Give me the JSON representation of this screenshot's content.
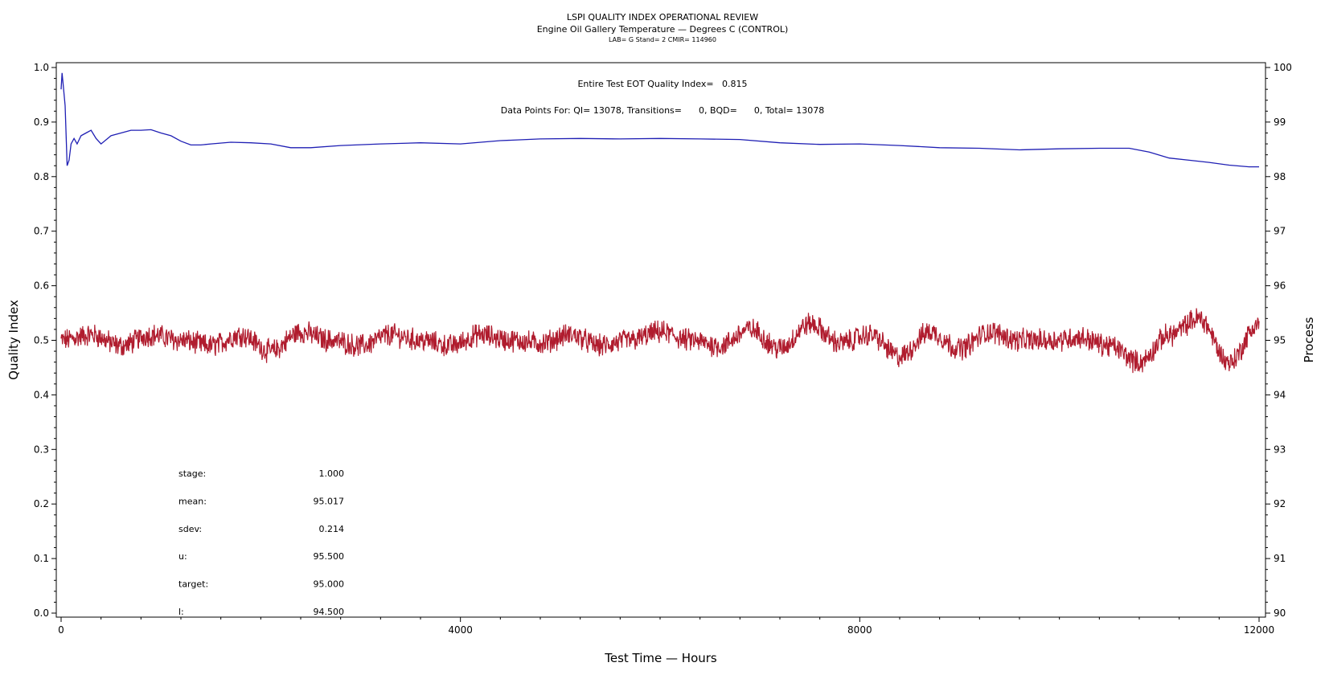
{
  "chart_data": {
    "type": "line",
    "title": "LSPI QUALITY INDEX OPERATIONAL REVIEW",
    "subtitle": "Engine Oil Gallery Temperature — Degrees C (CONTROL)",
    "subtitle2": "LAB= G Stand= 2 CMIR= 114960",
    "xlabel": "Test Time — Hours",
    "ylabel_left": "Quality Index",
    "ylabel_right": "Process",
    "xlim": [
      0,
      12000
    ],
    "ylim_left": [
      0.0,
      1.0
    ],
    "ylim_right": [
      90,
      100
    ],
    "x_ticks": [
      "0",
      "4000",
      "8000",
      "12000"
    ],
    "y_ticks_left": [
      "0.0",
      "0.1",
      "0.2",
      "0.3",
      "0.4",
      "0.5",
      "0.6",
      "0.7",
      "0.8",
      "0.9",
      "1.0"
    ],
    "y_ticks_right": [
      "90",
      "91",
      "92",
      "93",
      "94",
      "95",
      "96",
      "97",
      "98",
      "99",
      "100"
    ],
    "grid": false,
    "annotations": {
      "quality_index": "Entire Test EOT Quality Index=   0.815",
      "data_points": "Data Points For: QI= 13078, Transitions=      0, BQD=      0, Total= 13078"
    },
    "stats": [
      {
        "label": "stage:",
        "value": "1.000"
      },
      {
        "label": "mean:",
        "value": "95.017"
      },
      {
        "label": "sdev:",
        "value": "0.214"
      },
      {
        "label": "u:",
        "value": "95.500"
      },
      {
        "label": "target:",
        "value": "95.000"
      },
      {
        "label": "l:",
        "value": "94.500"
      }
    ],
    "series": [
      {
        "axis": "left",
        "color": "#1f1fb4",
        "x": [
          0,
          10,
          20,
          40,
          60,
          80,
          100,
          130,
          160,
          200,
          250,
          300,
          350,
          400,
          500,
          600,
          700,
          800,
          900,
          1000,
          1100,
          1200,
          1300,
          1400,
          1500,
          1700,
          1900,
          2100,
          2300,
          2500,
          2800,
          3200,
          3600,
          4000,
          4400,
          4800,
          5200,
          5600,
          6000,
          6400,
          6800,
          7200,
          7600,
          8000,
          8400,
          8800,
          9200,
          9600,
          10000,
          10400,
          10700,
          10900,
          11100,
          11300,
          11500,
          11700,
          11900,
          12000
        ],
        "y": [
          0.96,
          0.99,
          0.97,
          0.93,
          0.82,
          0.83,
          0.86,
          0.87,
          0.86,
          0.875,
          0.88,
          0.885,
          0.87,
          0.86,
          0.875,
          0.88,
          0.885,
          0.885,
          0.886,
          0.88,
          0.875,
          0.865,
          0.858,
          0.858,
          0.86,
          0.863,
          0.862,
          0.86,
          0.853,
          0.853,
          0.857,
          0.86,
          0.862,
          0.86,
          0.866,
          0.869,
          0.87,
          0.869,
          0.87,
          0.869,
          0.868,
          0.862,
          0.859,
          0.86,
          0.857,
          0.853,
          0.852,
          0.849,
          0.851,
          0.852,
          0.852,
          0.845,
          0.834,
          0.83,
          0.826,
          0.821,
          0.818,
          0.818
        ]
      },
      {
        "axis": "right",
        "color": "#b01c2e",
        "x": [
          0,
          300,
          600,
          900,
          1200,
          1500,
          1800,
          2100,
          2400,
          2700,
          3000,
          3300,
          3600,
          3900,
          4200,
          4500,
          4800,
          5100,
          5400,
          5700,
          6000,
          6300,
          6600,
          6900,
          7200,
          7500,
          7800,
          8100,
          8400,
          8700,
          9000,
          9300,
          9600,
          9900,
          10200,
          10500,
          10800,
          11100,
          11400,
          11700,
          12000
        ],
        "y": [
          95.0,
          95.1,
          94.9,
          95.1,
          95.0,
          94.9,
          95.1,
          94.8,
          95.15,
          95.0,
          94.9,
          95.1,
          95.0,
          94.9,
          95.1,
          95.0,
          94.95,
          95.1,
          94.9,
          95.0,
          95.15,
          95.0,
          94.9,
          95.2,
          94.85,
          95.3,
          94.95,
          95.1,
          94.7,
          95.15,
          94.85,
          95.15,
          95.0,
          95.0,
          95.05,
          94.9,
          94.6,
          95.1,
          95.4,
          94.6,
          95.3
        ]
      }
    ]
  }
}
